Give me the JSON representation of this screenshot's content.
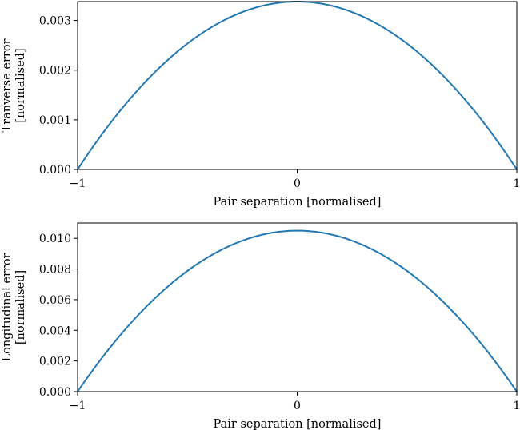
{
  "colors": {
    "series": "#1f77b4",
    "axes": "#000000",
    "background": "#ffffff"
  },
  "chart_data": [
    {
      "type": "line",
      "xlabel": "Pair separation [normalised]",
      "ylabel_lines": [
        "Tranverse error",
        "[normalised]"
      ],
      "xlim": [
        -1,
        1
      ],
      "ylim": [
        0,
        0.00338
      ],
      "xticks": [
        -1,
        0,
        1
      ],
      "xtick_labels": [
        "−1",
        "0",
        "1"
      ],
      "yticks": [
        0,
        0.001,
        0.002,
        0.003
      ],
      "ytick_labels": [
        "0.000",
        "0.001",
        "0.002",
        "0.003"
      ],
      "grid": false,
      "series": [
        {
          "x": [
            -1,
            -0.75,
            -0.5,
            -0.25,
            0,
            0.25,
            0.5,
            0.75,
            1
          ],
          "y": [
            0,
            0.00148,
            0.00254,
            0.00317,
            0.00338,
            0.00317,
            0.00254,
            0.00148,
            0
          ]
        }
      ]
    },
    {
      "type": "line",
      "xlabel": "Pair separation [normalised]",
      "ylabel_lines": [
        "Longitudinal error",
        "[normalised]"
      ],
      "xlim": [
        -1,
        1
      ],
      "ylim": [
        0,
        0.011
      ],
      "xticks": [
        -1,
        0,
        1
      ],
      "xtick_labels": [
        "−1",
        "0",
        "1"
      ],
      "yticks": [
        0,
        0.002,
        0.004,
        0.006,
        0.008,
        0.01
      ],
      "ytick_labels": [
        "0.000",
        "0.002",
        "0.004",
        "0.006",
        "0.008",
        "0.010"
      ],
      "grid": false,
      "series": [
        {
          "x": [
            -1,
            -0.75,
            -0.5,
            -0.25,
            0,
            0.25,
            0.5,
            0.75,
            1
          ],
          "y": [
            0,
            0.00459,
            0.00788,
            0.00984,
            0.0105,
            0.00984,
            0.00788,
            0.00459,
            0
          ]
        }
      ]
    }
  ]
}
